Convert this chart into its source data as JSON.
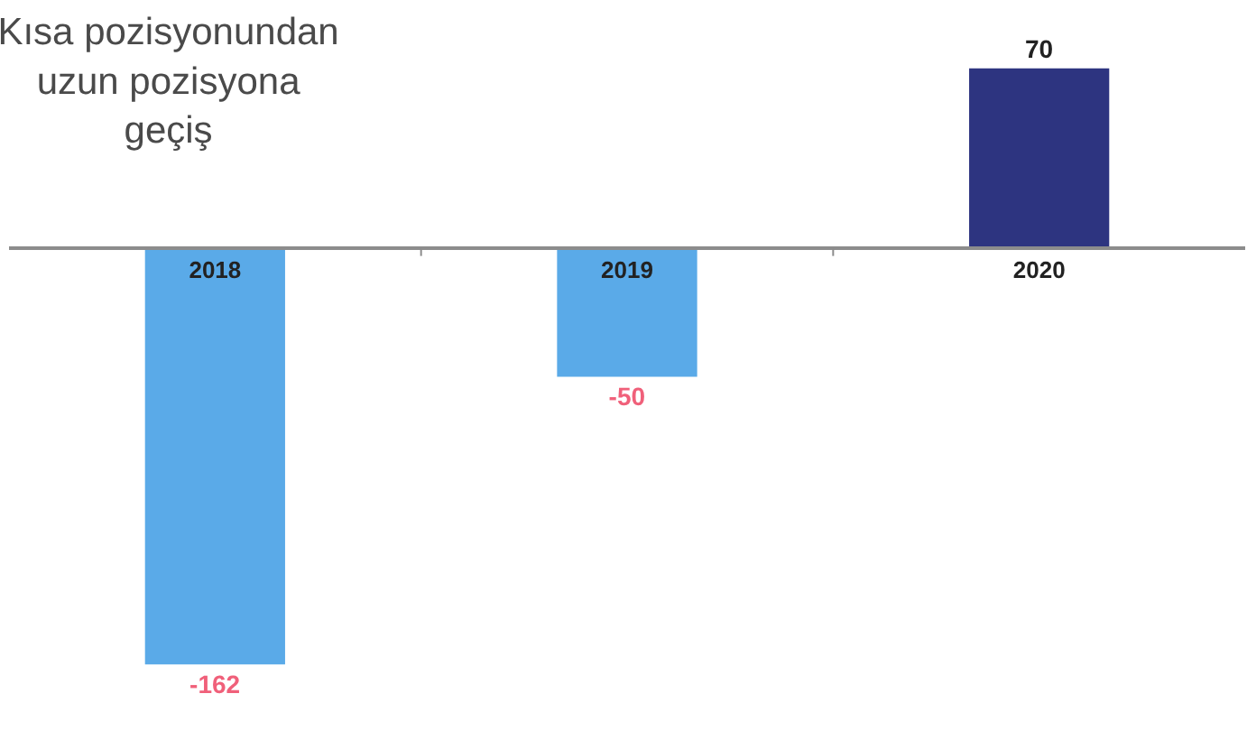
{
  "chart_data": {
    "type": "bar",
    "title": "Kısa pozisyonundan\nuzun pozisyona\ngeçiş",
    "categories": [
      "2018",
      "2019",
      "2020"
    ],
    "values": [
      -162,
      -50,
      70
    ],
    "colors": [
      "#5aaae8",
      "#5aaae8",
      "#2d3480"
    ],
    "data_labels": true
  }
}
